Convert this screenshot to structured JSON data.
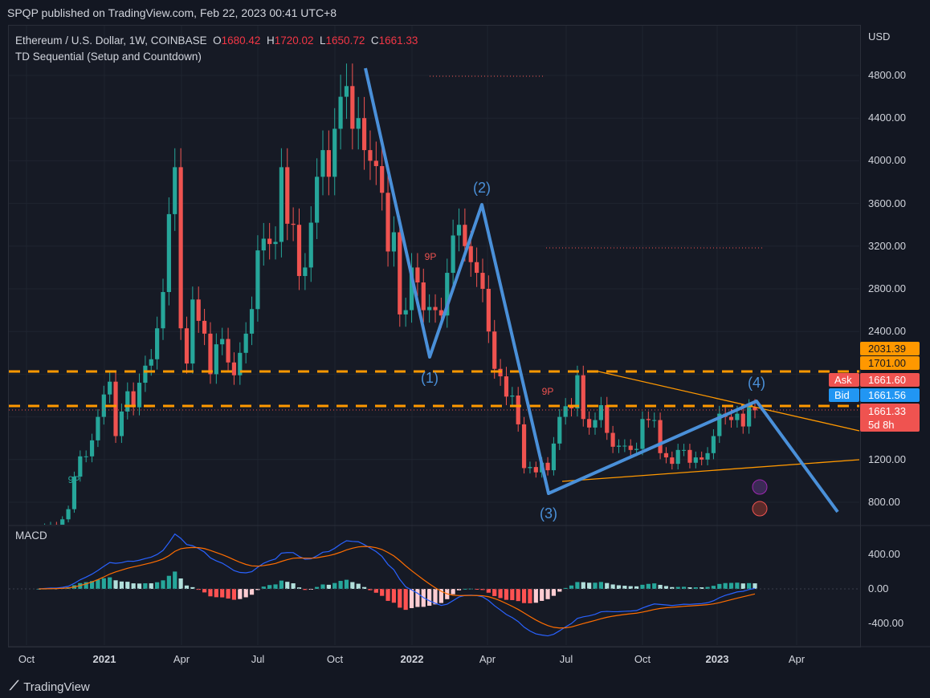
{
  "publisher_line": "SPQP published on TradingView.com, Feb 22, 2023 00:41 UTC+8",
  "legend": {
    "symbol": "Ethereum / U.S. Dollar, 1W, COINBASE",
    "o_label": "O",
    "o": "1680.42",
    "h_label": "H",
    "h": "1720.02",
    "l_label": "L",
    "l": "1650.72",
    "c_label": "C",
    "c": "1661.33",
    "indicator": "TD Sequential (Setup and Countdown)"
  },
  "currency": "USD",
  "macd_label": "MACD",
  "price_axis": [
    "4800.00",
    "4400.00",
    "4000.00",
    "3600.00",
    "3200.00",
    "2800.00",
    "2400.00",
    "1200.00",
    "800.00"
  ],
  "macd_axis": [
    "400.00",
    "0.00",
    "-400.00"
  ],
  "tags": {
    "level1": "2031.39",
    "level2": "1701.00",
    "ask_label": "Ask",
    "ask": "1661.60",
    "bid_label": "Bid",
    "bid": "1661.56",
    "last": "1661.33",
    "countdown": "5d 8h"
  },
  "time_axis": [
    {
      "t": "Oct",
      "b": false
    },
    {
      "t": "2021",
      "b": true
    },
    {
      "t": "Apr",
      "b": false
    },
    {
      "t": "Jul",
      "b": false
    },
    {
      "t": "Oct",
      "b": false
    },
    {
      "t": "2022",
      "b": true
    },
    {
      "t": "Apr",
      "b": false
    },
    {
      "t": "Jul",
      "b": false
    },
    {
      "t": "Oct",
      "b": false
    },
    {
      "t": "2023",
      "b": true
    },
    {
      "t": "Apr",
      "b": false
    }
  ],
  "waves": {
    "w1": "(1)",
    "w2": "(2)",
    "w3": "(3)",
    "w4": "(4)"
  },
  "td_labels": {
    "a": "9P",
    "b": "9P",
    "c": "9P"
  },
  "brand": "TradingView",
  "colors": {
    "up": "#26a69a",
    "down": "#ef5350",
    "wave": "#4a90d9",
    "level": "#ff9800",
    "bid": "#2196f3"
  },
  "chart_data": {
    "type": "candlestick",
    "title": "Ethereum / U.S. Dollar, 1W, COINBASE",
    "ylim": [
      600,
      5000
    ],
    "weekly_closes": [
      520,
      575,
      590,
      560,
      640,
      735,
      1040,
      1230,
      1230,
      1380,
      1600,
      1810,
      1930,
      1420,
      1650,
      1840,
      1690,
      1920,
      2080,
      2140,
      2430,
      2770,
      3500,
      3940,
      2430,
      2100,
      2700,
      2500,
      2380,
      2000,
      2280,
      2330,
      2110,
      1990,
      2200,
      2380,
      2610,
      3160,
      3270,
      3220,
      3240,
      3940,
      3410,
      3400,
      2920,
      3000,
      3420,
      3850,
      4100,
      3850,
      4300,
      4600,
      4700,
      4300,
      4400,
      4100,
      4000,
      3950,
      3700,
      3150,
      3330,
      2560,
      2600,
      3000,
      2860,
      2600,
      2630,
      2600,
      2550,
      2950,
      3300,
      3400,
      3200,
      3050,
      2950,
      2800,
      2400,
      2050,
      1980,
      1790,
      1800,
      1530,
      1120,
      1130,
      1080,
      1170,
      1100,
      1350,
      1600,
      1700,
      1680,
      1990,
      1580,
      1500,
      1570,
      1710,
      1450,
      1320,
      1330,
      1330,
      1290,
      1300,
      1580,
      1570,
      1570,
      1260,
      1220,
      1160,
      1290,
      1290,
      1170,
      1220,
      1200,
      1260,
      1420,
      1630,
      1600,
      1570,
      1630,
      1510,
      1690,
      1661.33
    ],
    "indicator": "MACD (12,26,9)"
  }
}
